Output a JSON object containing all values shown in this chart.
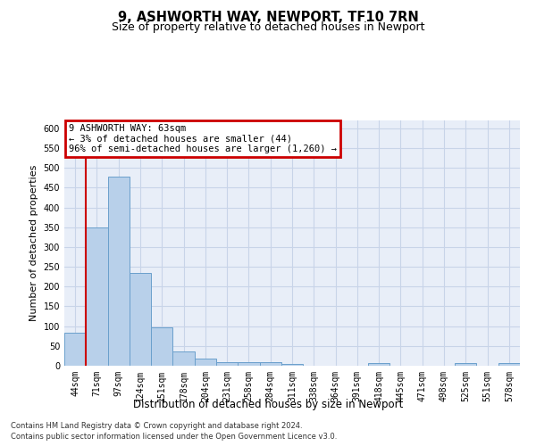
{
  "title": "9, ASHWORTH WAY, NEWPORT, TF10 7RN",
  "subtitle": "Size of property relative to detached houses in Newport",
  "xlabel": "Distribution of detached houses by size in Newport",
  "ylabel": "Number of detached properties",
  "bar_labels": [
    "44sqm",
    "71sqm",
    "97sqm",
    "124sqm",
    "151sqm",
    "178sqm",
    "204sqm",
    "231sqm",
    "258sqm",
    "284sqm",
    "311sqm",
    "338sqm",
    "364sqm",
    "391sqm",
    "418sqm",
    "445sqm",
    "471sqm",
    "498sqm",
    "525sqm",
    "551sqm",
    "578sqm"
  ],
  "bar_values": [
    84,
    350,
    478,
    235,
    96,
    37,
    18,
    8,
    9,
    9,
    5,
    0,
    0,
    0,
    6,
    0,
    0,
    0,
    6,
    0,
    6
  ],
  "bar_color": "#b8d0ea",
  "bar_edge_color": "#6aa0cc",
  "annotation_text_line1": "9 ASHWORTH WAY: 63sqm",
  "annotation_text_line2": "← 3% of detached houses are smaller (44)",
  "annotation_text_line3": "96% of semi-detached houses are larger (1,260) →",
  "annotation_box_facecolor": "#ffffff",
  "annotation_border_color": "#cc0000",
  "vline_color": "#cc0000",
  "vline_x": 0.5,
  "grid_color": "#c8d4e8",
  "background_color": "#e8eef8",
  "ylim": [
    0,
    620
  ],
  "yticks": [
    0,
    50,
    100,
    150,
    200,
    250,
    300,
    350,
    400,
    450,
    500,
    550,
    600
  ],
  "footer_line1": "Contains HM Land Registry data © Crown copyright and database right 2024.",
  "footer_line2": "Contains public sector information licensed under the Open Government Licence v3.0.",
  "title_fontsize": 10.5,
  "subtitle_fontsize": 9,
  "ylabel_fontsize": 8,
  "xlabel_fontsize": 8.5,
  "tick_fontsize": 7,
  "annotation_fontsize": 7.5,
  "footer_fontsize": 6
}
